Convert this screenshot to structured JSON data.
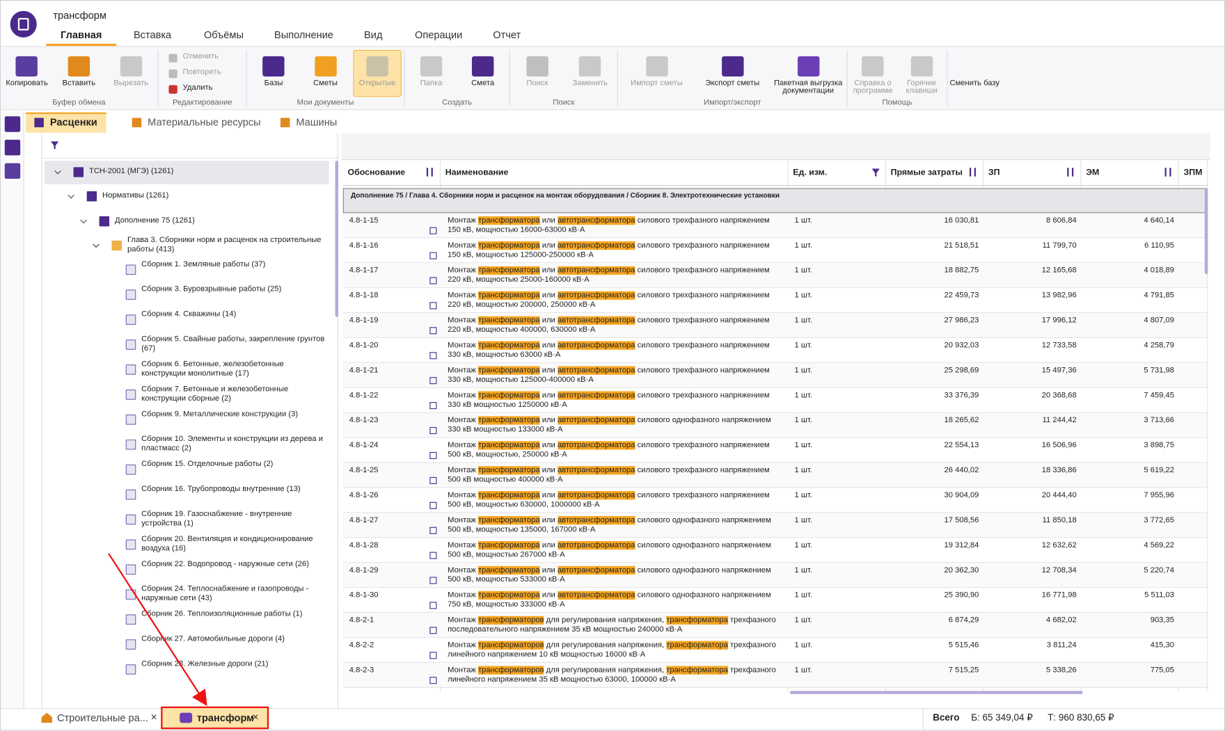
{
  "window_title": "трансформ",
  "menu_tabs": [
    "Главная",
    "Вставка",
    "Объёмы",
    "Выполнение",
    "Вид",
    "Операции",
    "Отчет"
  ],
  "ribbon_groups": [
    {
      "label": "Буфер обмена",
      "buttons": [
        "Копировать",
        "Вставить",
        "Вырезать"
      ]
    },
    {
      "label": "Редактирование",
      "buttons": [
        "Отменить",
        "Повторить",
        "Удалить"
      ]
    },
    {
      "label": "Мои документы",
      "buttons": [
        "Базы",
        "Сметы",
        "Открытые"
      ]
    },
    {
      "label": "Создать",
      "buttons": [
        "Папка",
        "Смета"
      ]
    },
    {
      "label": "Поиск",
      "buttons": [
        "Поиск",
        "Заменить"
      ]
    },
    {
      "label": "Импорт/экспорт",
      "buttons": [
        "Импорт сметы",
        "Экспорт сметы",
        "Пакетная выгрузка документации"
      ]
    },
    {
      "label": "Помощь",
      "buttons": [
        "Справка о программе",
        "Горячие клавиши"
      ]
    },
    {
      "label": null,
      "buttons": [
        "Сменить базу"
      ]
    }
  ],
  "sub_tabs": [
    "Расценки",
    "Материальные ресурсы",
    "Машины"
  ],
  "tree": [
    {
      "label": "ТСН-2001 (МГЭ) (1261)",
      "level": 0
    },
    {
      "label": "Нормативы (1261)",
      "level": 1
    },
    {
      "label": "Дополнение 75 (1261)",
      "level": 2
    },
    {
      "label": "Глава  3. Сборники норм и расценок на строительные работы (413)",
      "level": 3
    },
    {
      "label": "Сборник  1. Земляные работы (37)",
      "level": 4
    },
    {
      "label": "Сборник  3. Буровзрывные работы (25)",
      "level": 4
    },
    {
      "label": "Сборник  4. Скважины (14)",
      "level": 4
    },
    {
      "label": "Сборник  5. Свайные работы, закрепление грунтов (67)",
      "level": 4
    },
    {
      "label": "Сборник  6. Бетонные, железобетонные конструкции монолитные (17)",
      "level": 4
    },
    {
      "label": "Сборник  7. Бетонные и железобетонные конструкции сборные (2)",
      "level": 4
    },
    {
      "label": "Сборник  9. Металлические конструкции (3)",
      "level": 4
    },
    {
      "label": "Сборник 10. Элементы и конструкции из дерева и пластмасс (2)",
      "level": 4
    },
    {
      "label": "Сборник 15. Отделочные работы (2)",
      "level": 4
    },
    {
      "label": "Сборник 16. Трубопроводы внутренние (13)",
      "level": 4
    },
    {
      "label": "Сборник 19. Газоснабжение - внутренние устройства (1)",
      "level": 4
    },
    {
      "label": "Сборник 20. Вентиляция и кондиционирование воздуха (16)",
      "level": 4
    },
    {
      "label": "Сборник 22. Водопровод - наружные сети (26)",
      "level": 4
    },
    {
      "label": "Сборник 24. Теплоснабжение и газопроводы - наружные сети (43)",
      "level": 4
    },
    {
      "label": "Сборник 26. Теплоизоляционные работы (1)",
      "level": 4
    },
    {
      "label": "Сборник 27. Автомобильные дороги (4)",
      "level": 4
    },
    {
      "label": "Сборник 28. Железные дороги (21)",
      "level": 4
    }
  ],
  "table": {
    "columns": [
      "Обоснование",
      "Наименование",
      "Ед. изм.",
      "Прямые затраты",
      "ЗП",
      "ЭМ",
      "ЗПМ"
    ],
    "group_header": "Дополнение 75 / Глава 4. Сборники норм и расценок на монтаж оборудования / Сборник 8. Электротехнические установки",
    "highlight_terms": [
      "автотрансформатора",
      "трансформаторов",
      "трансформатора"
    ],
    "rows": [
      [
        "4.8-1-15",
        "Монтаж трансформатора или автотрансформатора силового трехфазного напряжением 150 кВ, мощностью 16000-63000 кВ·А",
        "1 шт.",
        "16 030,81",
        "8 606,84",
        "4 640,14"
      ],
      [
        "4.8-1-16",
        "Монтаж трансформатора или автотрансформатора силового трехфазного напряжением 150 кВ, мощностью 125000-250000 кВ·А",
        "1 шт.",
        "21 518,51",
        "11 799,70",
        "6 110,95"
      ],
      [
        "4.8-1-17",
        "Монтаж трансформатора или автотрансформатора силового трехфазного напряжением 220 кВ, мощностью 25000-160000 кВ·А",
        "1 шт.",
        "18 882,75",
        "12 165,68",
        "4 018,89"
      ],
      [
        "4.8-1-18",
        "Монтаж трансформатора или автотрансформатора силового трехфазного напряжением 220 кВ, мощностью 200000, 250000 кВ·А",
        "1 шт.",
        "22 459,73",
        "13 982,96",
        "4 791,85"
      ],
      [
        "4.8-1-19",
        "Монтаж трансформатора или автотрансформатора силового трехфазного напряжением 220 кВ, мощностью 400000, 630000 кВ·А",
        "1 шт.",
        "27 986,23",
        "17 996,12",
        "4 807,09"
      ],
      [
        "4.8-1-20",
        "Монтаж трансформатора или автотрансформатора силового трехфазного напряжением 330 кВ, мощностью 63000 кВ·А",
        "1 шт.",
        "20 932,03",
        "12 733,58",
        "4 258,79"
      ],
      [
        "4.8-1-21",
        "Монтаж трансформатора или автотрансформатора силового трехфазного напряжением 330 кВ, мощностью 125000-400000 кВ·А",
        "1 шт.",
        "25 298,69",
        "15 497,36",
        "5 731,98"
      ],
      [
        "4.8-1-22",
        "Монтаж трансформатора или автотрансформатора силового трехфазного напряжением 330 кВ мощностью 1250000 кВ·А",
        "1 шт.",
        "33 376,39",
        "20 368,68",
        "7 459,45"
      ],
      [
        "4.8-1-23",
        "Монтаж трансформатора или автотрансформатора силового однофазного напряжением 330 кВ мощностью 133000 кВ·А",
        "1 шт.",
        "18 265,62",
        "11 244,42",
        "3 713,66"
      ],
      [
        "4.8-1-24",
        "Монтаж трансформатора или автотрансформатора силового трехфазного напряжением 500 кВ, мощностью, 250000 кВ·А",
        "1 шт.",
        "22 554,13",
        "16 506,96",
        "3 898,75"
      ],
      [
        "4.8-1-25",
        "Монтаж трансформатора или автотрансформатора силового трехфазного напряжением 500 кВ мощностью 400000 кВ·А",
        "1 шт.",
        "26 440,02",
        "18 336,86",
        "5 619,22"
      ],
      [
        "4.8-1-26",
        "Монтаж трансформатора или автотрансформатора силового трехфазного напряжением 500 кВ, мощностью 630000, 1000000 кВ·А",
        "1 шт.",
        "30 904,09",
        "20 444,40",
        "7 955,96"
      ],
      [
        "4.8-1-27",
        "Монтаж трансформатора или автотрансформатора силового однофазного напряжением 500 кВ, мощностью 135000, 167000 кВ·А",
        "1 шт.",
        "17 508,56",
        "11 850,18",
        "3 772,65"
      ],
      [
        "4.8-1-28",
        "Монтаж трансформатора или автотрансформатора силового однофазного напряжением 500 кВ, мощностью 267000 кВ·А",
        "1 шт.",
        "19 312,84",
        "12 632,62",
        "4 569,22"
      ],
      [
        "4.8-1-29",
        "Монтаж трансформатора или автотрансформатора силового однофазного напряжением 500 кВ, мощностью 533000 кВ·А",
        "1 шт.",
        "20 362,30",
        "12 708,34",
        "5 220,74"
      ],
      [
        "4.8-1-30",
        "Монтаж трансформатора или автотрансформатора силового однофазного напряжением 750 кВ, мощностью 333000 кВ·А",
        "1 шт.",
        "25 390,90",
        "16 771,98",
        "5 511,03"
      ],
      [
        "4.8-2-1",
        "Монтаж трансформаторов для регулирования напряжения, трансформатора трехфазного последовательного напряжением 35 кВ мощностью 240000 кВ·А",
        "1 шт.",
        "6 874,29",
        "4 682,02",
        "903,35"
      ],
      [
        "4.8-2-2",
        "Монтаж трансформаторов для регулирования напряжения, трансформатора трехфазного линейного напряжением 10 кВ мощностью 16000 кВ·А",
        "1 шт.",
        "5 515,46",
        "3 811,24",
        "415,30"
      ],
      [
        "4.8-2-3",
        "Монтаж трансформаторов для регулирования напряжения, трансформатора трехфазного линейного напряжением 35 кВ мощностью 63000, 100000 кВ·А",
        "1 шт.",
        "7 515,25",
        "5 338,26",
        "775,05"
      ]
    ]
  },
  "status_bar": {
    "doc_tabs": [
      "Строительные ра...",
      "трансформ"
    ],
    "total_label": "Всего",
    "total_b": "Б: 65 349,04 ₽",
    "total_t": "Т: 960 830,65 ₽"
  }
}
